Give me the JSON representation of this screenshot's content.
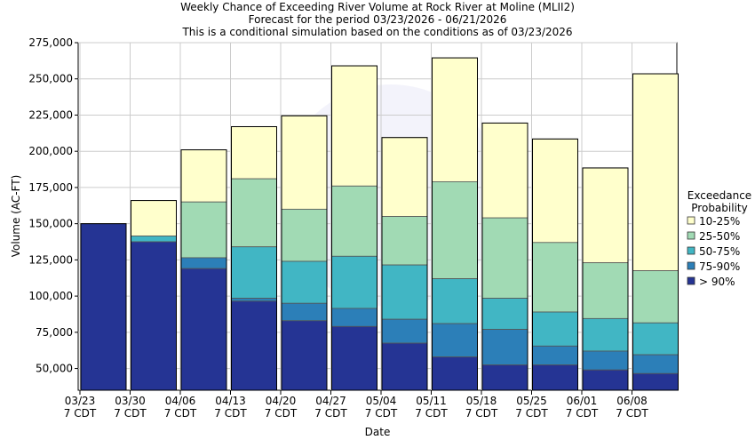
{
  "chart_data": {
    "type": "bar",
    "title_lines": [
      "Weekly Chance of Exceeding River Volume at Rock River at Moline (MLII2)",
      "Forecast for the period 03/23/2026 - 06/21/2026",
      "This is a conditional simulation based on the conditions as of 03/23/2026"
    ],
    "xlabel": "Date",
    "ylabel": "Volume (AC-FT)",
    "ylim": [
      35000,
      275000
    ],
    "yticks": [
      50000,
      75000,
      100000,
      125000,
      150000,
      175000,
      200000,
      225000,
      250000,
      275000
    ],
    "ytick_labels": [
      "50,000",
      "75,000",
      "100,000",
      "125,000",
      "150,000",
      "175,000",
      "200,000",
      "225,000",
      "250,000",
      "275,000"
    ],
    "xticks": [
      {
        "date": "03/23",
        "tz": "7 CDT"
      },
      {
        "date": "03/30",
        "tz": "7 CDT"
      },
      {
        "date": "04/06",
        "tz": "7 CDT"
      },
      {
        "date": "04/13",
        "tz": "7 CDT"
      },
      {
        "date": "04/20",
        "tz": "7 CDT"
      },
      {
        "date": "04/27",
        "tz": "7 CDT"
      },
      {
        "date": "05/04",
        "tz": "7 CDT"
      },
      {
        "date": "05/11",
        "tz": "7 CDT"
      },
      {
        "date": "05/18",
        "tz": "7 CDT"
      },
      {
        "date": "05/25",
        "tz": "7 CDT"
      },
      {
        "date": "06/01",
        "tz": "7 CDT"
      },
      {
        "date": "06/08",
        "tz": "7 CDT"
      }
    ],
    "legend_title_lines": [
      "Exceedance",
      "Probability"
    ],
    "legend_placement": "right",
    "grid": true,
    "series": [
      {
        "name": "10-25%",
        "color": "#ffffcc"
      },
      {
        "name": "25-50%",
        "color": "#a1dab4"
      },
      {
        "name": "50-75%",
        "color": "#41b6c4"
      },
      {
        "name": "75-90%",
        "color": "#2c7fb8"
      },
      {
        "name": "> 90%",
        "color": "#253494"
      }
    ],
    "bars": [
      {
        "week": "03/23",
        "levels": [
          150000,
          150000,
          150000,
          150000,
          150000
        ]
      },
      {
        "week": "03/30",
        "levels": [
          166000,
          141500,
          141500,
          137500,
          137500
        ]
      },
      {
        "week": "04/06",
        "levels": [
          201000,
          165000,
          126500,
          126500,
          119000
        ]
      },
      {
        "week": "04/13",
        "levels": [
          217000,
          181000,
          134000,
          98500,
          96500
        ]
      },
      {
        "week": "04/20",
        "levels": [
          224500,
          160000,
          124000,
          95000,
          83000
        ]
      },
      {
        "week": "04/27",
        "levels": [
          259000,
          176000,
          127500,
          91500,
          79000
        ]
      },
      {
        "week": "05/04",
        "levels": [
          209500,
          155000,
          121500,
          84000,
          67500
        ]
      },
      {
        "week": "05/11",
        "levels": [
          264500,
          179000,
          112000,
          81000,
          58000
        ]
      },
      {
        "week": "05/18",
        "levels": [
          219500,
          154000,
          98500,
          77000,
          52500
        ]
      },
      {
        "week": "05/25",
        "levels": [
          208500,
          137000,
          89000,
          65500,
          52500
        ]
      },
      {
        "week": "06/01",
        "levels": [
          188500,
          123000,
          84500,
          62000,
          49000
        ]
      },
      {
        "week": "06/08",
        "levels": [
          253500,
          117500,
          81500,
          59500,
          46500
        ]
      }
    ]
  }
}
